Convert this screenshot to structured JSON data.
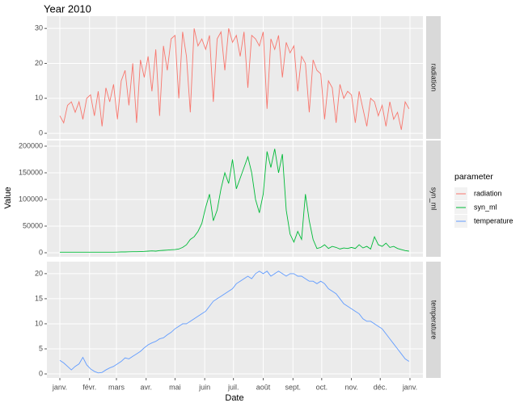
{
  "chart_data": {
    "type": "line",
    "title": "Year 2010",
    "xlabel": "Date",
    "ylabel": "Value",
    "legend_title": "parameter",
    "legend": "right",
    "grid": true,
    "x": [
      0,
      4,
      8,
      12,
      16,
      20,
      24,
      28,
      32,
      36,
      40,
      44,
      48,
      52,
      56,
      60,
      64,
      68,
      72,
      76,
      80,
      84,
      88,
      92,
      96,
      100,
      104,
      108,
      112,
      116,
      120,
      124,
      128,
      132,
      136,
      140,
      144,
      148,
      152,
      156,
      160,
      164,
      168,
      172,
      176,
      180,
      184,
      188,
      192,
      196,
      200,
      204,
      208,
      212,
      216,
      220,
      224,
      228,
      232,
      236,
      240,
      244,
      248,
      252,
      256,
      260,
      264,
      268,
      272,
      276,
      280,
      284,
      288,
      292,
      296,
      300,
      304,
      308,
      312,
      316,
      320,
      324,
      328,
      332,
      336,
      340,
      344,
      348,
      352,
      356,
      360,
      364
    ],
    "xlim": [
      -13.5,
      378.5
    ],
    "xticks": [
      {
        "value": 0,
        "label": "janv."
      },
      {
        "value": 31,
        "label": "févr."
      },
      {
        "value": 59,
        "label": "mars"
      },
      {
        "value": 90,
        "label": "avr."
      },
      {
        "value": 120,
        "label": "mai"
      },
      {
        "value": 151,
        "label": "juin"
      },
      {
        "value": 181,
        "label": "juil."
      },
      {
        "value": 212,
        "label": "août"
      },
      {
        "value": 243,
        "label": "sept."
      },
      {
        "value": 273,
        "label": "oct."
      },
      {
        "value": 304,
        "label": "nov."
      },
      {
        "value": 334,
        "label": "déc."
      },
      {
        "value": 365,
        "label": "janv."
      }
    ],
    "series": [
      {
        "name": "radiation",
        "color": "#F8766D",
        "ylim": [
          -1.6,
          33.5
        ],
        "yticks": [
          0,
          10,
          20,
          30
        ],
        "values": [
          5,
          3,
          8,
          9,
          6,
          9,
          4,
          10,
          11,
          5,
          12,
          2,
          13,
          9,
          14,
          4,
          15,
          18,
          8,
          20,
          3,
          21,
          16,
          22,
          12,
          24,
          5,
          25,
          18,
          27,
          28,
          10,
          29,
          22,
          6,
          30,
          25,
          27,
          24,
          28,
          9,
          27,
          29,
          18,
          30,
          26,
          28,
          22,
          29,
          13,
          28,
          27,
          25,
          29,
          7,
          27,
          24,
          28,
          16,
          26,
          23,
          25,
          12,
          22,
          20,
          6,
          21,
          18,
          17,
          4,
          15,
          13,
          3,
          14,
          10,
          12,
          11,
          3,
          12,
          7,
          2,
          10,
          9,
          5,
          8,
          2,
          9,
          4,
          6,
          1,
          9,
          7
        ]
      },
      {
        "name": "syn_ml",
        "color": "#00BA38",
        "ylim": [
          -7600,
          210600
        ],
        "yticks": [
          0,
          50000,
          100000,
          150000,
          200000
        ],
        "values": [
          1000,
          1000,
          1000,
          1000,
          1000,
          1000,
          1000,
          1000,
          1000,
          1000,
          1000,
          1000,
          1000,
          1000,
          1000,
          1200,
          1500,
          1500,
          1800,
          2000,
          2000,
          2200,
          2500,
          3000,
          3500,
          3000,
          4000,
          4500,
          5000,
          5500,
          6000,
          7000,
          10000,
          15000,
          25000,
          30000,
          40000,
          55000,
          85000,
          110000,
          60000,
          80000,
          120000,
          150000,
          130000,
          175000,
          120000,
          140000,
          160000,
          180000,
          150000,
          100000,
          75000,
          110000,
          190000,
          160000,
          195000,
          150000,
          185000,
          80000,
          35000,
          20000,
          40000,
          25000,
          110000,
          60000,
          25000,
          8000,
          10000,
          15000,
          8000,
          12000,
          10000,
          7000,
          9000,
          8000,
          10000,
          8000,
          15000,
          9000,
          12000,
          7000,
          30000,
          15000,
          12000,
          18000,
          10000,
          12000,
          8000,
          6000,
          4000,
          3000
        ]
      },
      {
        "name": "temperature",
        "color": "#619CFF",
        "ylim": [
          -0.8,
          22.4
        ],
        "yticks": [
          0,
          5,
          10,
          15,
          20
        ],
        "values": [
          2.7,
          2.2,
          1.5,
          0.8,
          1.5,
          2,
          3.3,
          1.8,
          1,
          0.5,
          0.2,
          0.3,
          0.8,
          1.2,
          1.5,
          2,
          2.5,
          3.2,
          3,
          3.5,
          4,
          4.5,
          5.2,
          5.8,
          6.2,
          6.5,
          7,
          7.2,
          7.8,
          8.3,
          9,
          9.5,
          10,
          10,
          10.5,
          11,
          11.5,
          12,
          12.5,
          13.5,
          14.5,
          15,
          15.5,
          16,
          16.5,
          17,
          18,
          18.5,
          19,
          19.5,
          19,
          20,
          20.5,
          20,
          20.5,
          19.5,
          20,
          20.5,
          20,
          19.5,
          20,
          20,
          19.5,
          19.5,
          19,
          18.5,
          18.5,
          18,
          18.5,
          18,
          17,
          16.5,
          16,
          15,
          14,
          13.5,
          13,
          12.5,
          12,
          11,
          10.5,
          10.5,
          10,
          9.5,
          9,
          8,
          7,
          6,
          5,
          4,
          3,
          2.5
        ]
      }
    ]
  }
}
